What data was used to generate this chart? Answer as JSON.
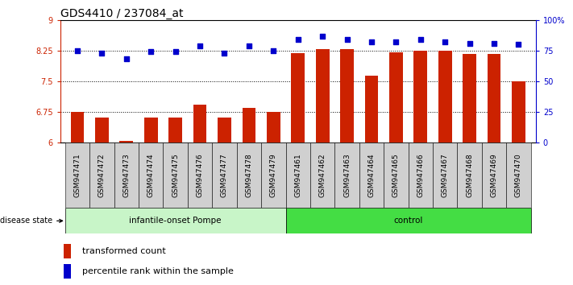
{
  "title": "GDS4410 / 237084_at",
  "samples": [
    "GSM947471",
    "GSM947472",
    "GSM947473",
    "GSM947474",
    "GSM947475",
    "GSM947476",
    "GSM947477",
    "GSM947478",
    "GSM947479",
    "GSM947461",
    "GSM947462",
    "GSM947463",
    "GSM947464",
    "GSM947465",
    "GSM947466",
    "GSM947467",
    "GSM947468",
    "GSM947469",
    "GSM947470"
  ],
  "bar_values": [
    6.75,
    6.62,
    6.03,
    6.62,
    6.62,
    6.92,
    6.62,
    6.84,
    6.75,
    8.18,
    8.29,
    8.29,
    7.63,
    8.2,
    8.25,
    8.25,
    8.17,
    8.17,
    7.5
  ],
  "dot_values": [
    75,
    73,
    68,
    74,
    74,
    79,
    73,
    79,
    75,
    84,
    87,
    84,
    82,
    82,
    84,
    82,
    81,
    81,
    80
  ],
  "ylim_left": [
    6.0,
    9.0
  ],
  "ylim_right": [
    0,
    100
  ],
  "yticks_left": [
    6.0,
    6.75,
    7.5,
    8.25,
    9.0
  ],
  "ytick_labels_left": [
    "6",
    "6.75",
    "7.5",
    "8.25",
    "9"
  ],
  "yticks_right": [
    0,
    25,
    50,
    75,
    100
  ],
  "ytick_labels_right": [
    "0",
    "25",
    "50",
    "75",
    "100%"
  ],
  "bar_color": "#CC2200",
  "dot_color": "#0000CC",
  "bar_bottom": 6.0,
  "hlines": [
    6.75,
    7.5,
    8.25
  ],
  "legend_bar": "transformed count",
  "legend_dot": "percentile rank within the sample",
  "disease_state_label": "disease state",
  "title_fontsize": 10,
  "tick_fontsize": 7,
  "axis_color_left": "#CC2200",
  "axis_color_right": "#0000CC",
  "group1_label": "infantile-onset Pompe",
  "group1_n": 9,
  "group2_label": "control",
  "group2_n": 10,
  "group1_color": "#c8f5c8",
  "group2_color": "#44dd44",
  "sample_box_color": "#d0d0d0"
}
